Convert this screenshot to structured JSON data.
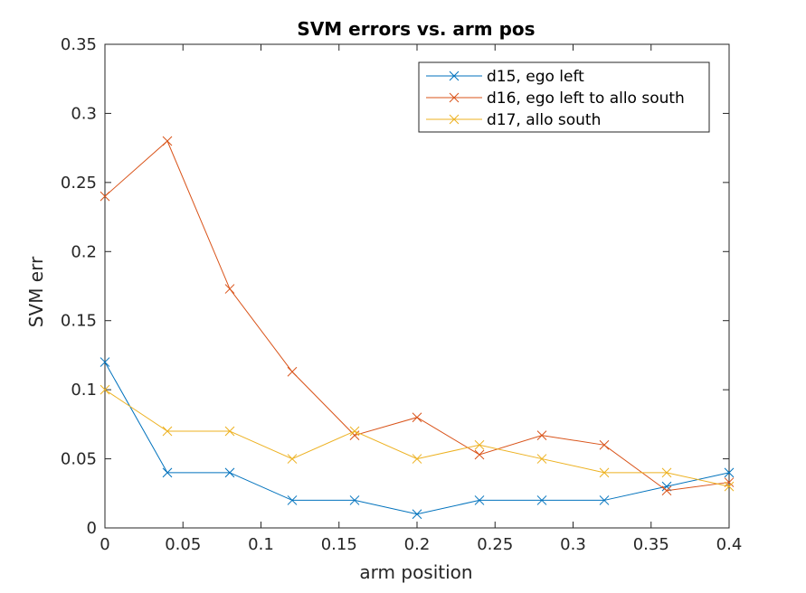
{
  "chart_data": {
    "type": "line",
    "title": "SVM errors vs. arm pos",
    "xlabel": "arm position",
    "ylabel": "SVM err",
    "xlim": [
      0,
      0.4
    ],
    "ylim": [
      0,
      0.35
    ],
    "x_ticks": [
      "0",
      "0.05",
      "0.1",
      "0.15",
      "0.2",
      "0.25",
      "0.3",
      "0.35",
      "0.4"
    ],
    "y_ticks": [
      "0",
      "0.05",
      "0.1",
      "0.15",
      "0.2",
      "0.25",
      "0.3",
      "0.35"
    ],
    "x_tick_values": [
      0,
      0.05,
      0.1,
      0.15,
      0.2,
      0.25,
      0.3,
      0.35,
      0.4
    ],
    "y_tick_values": [
      0,
      0.05,
      0.1,
      0.15,
      0.2,
      0.25,
      0.3,
      0.35
    ],
    "grid": false,
    "legend_position": "top-right",
    "marker": "x",
    "x": [
      0,
      0.04,
      0.08,
      0.12,
      0.16,
      0.2,
      0.24,
      0.28,
      0.32,
      0.36,
      0.4
    ],
    "series": [
      {
        "name": "d15, ego left",
        "color": "#0072BD",
        "values": [
          0.12,
          0.04,
          0.04,
          0.02,
          0.02,
          0.01,
          0.02,
          0.02,
          0.02,
          0.03,
          0.04
        ]
      },
      {
        "name": "d16, ego left to allo south",
        "color": "#D95319",
        "values": [
          0.24,
          0.28,
          0.173,
          0.113,
          0.067,
          0.08,
          0.053,
          0.067,
          0.06,
          0.027,
          0.033
        ]
      },
      {
        "name": "d17, allo south",
        "color": "#EDB120",
        "values": [
          0.1,
          0.07,
          0.07,
          0.05,
          0.07,
          0.05,
          0.06,
          0.05,
          0.04,
          0.04,
          0.03
        ]
      }
    ]
  }
}
